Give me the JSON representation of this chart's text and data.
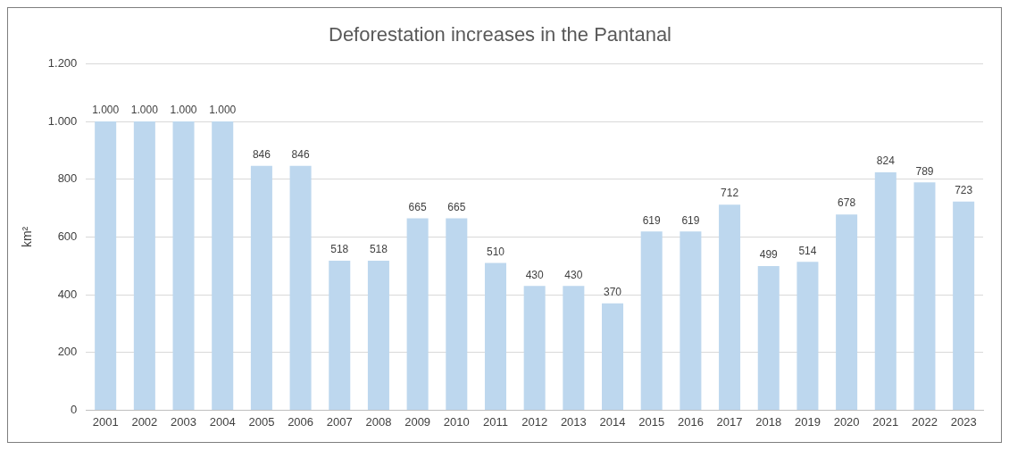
{
  "chart_data": {
    "type": "bar",
    "title": "Deforestation increases in the Pantanal",
    "ylabel": "km²",
    "categories": [
      "2001",
      "2002",
      "2003",
      "2004",
      "2005",
      "2006",
      "2007",
      "2008",
      "2009",
      "2010",
      "2011",
      "2012",
      "2013",
      "2014",
      "2015",
      "2016",
      "2017",
      "2018",
      "2019",
      "2020",
      "2021",
      "2022",
      "2023"
    ],
    "series": [
      {
        "color": "#bdd7ee",
        "values": [
          1000,
          1000,
          1000,
          1000,
          846,
          846,
          518,
          518,
          665,
          665,
          510,
          430,
          430,
          370,
          619,
          619,
          712,
          499,
          514,
          678,
          824,
          789,
          723
        ],
        "value_labels": [
          "1.000",
          "1.000",
          "1.000",
          "1.000",
          "846",
          "846",
          "518",
          "518",
          "665",
          "665",
          "510",
          "430",
          "430",
          "370",
          "619",
          "619",
          "712",
          "499",
          "514",
          "678",
          "824",
          "789",
          "723"
        ]
      }
    ],
    "ylim": [
      0,
      1200
    ],
    "yticks": [
      0,
      200,
      400,
      600,
      800,
      {
        "value": 1000,
        "label": "1.000"
      },
      {
        "value": 1200,
        "label": "1.200"
      }
    ],
    "grid": "y",
    "legend": false
  }
}
